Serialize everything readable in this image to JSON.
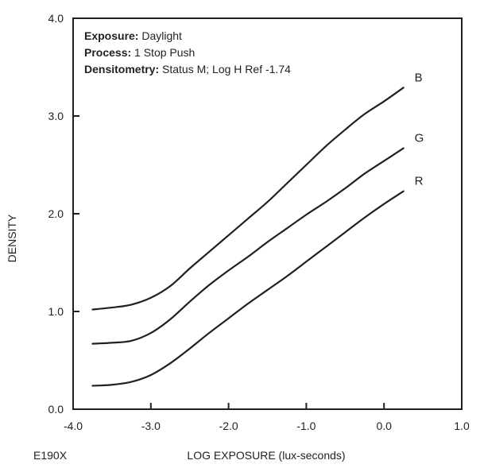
{
  "chart_data": {
    "type": "line",
    "xlabel": "LOG EXPOSURE (lux-seconds)",
    "ylabel": "DENSITY",
    "xlim": [
      -4.0,
      1.0
    ],
    "ylim": [
      0.0,
      4.0
    ],
    "x_ticks": [
      "-4.0",
      "-3.0",
      "-2.0",
      "-1.0",
      "0.0",
      "1.0"
    ],
    "y_ticks": [
      "0.0",
      "1.0",
      "2.0",
      "3.0",
      "4.0"
    ],
    "figure_code": "E190X",
    "info": [
      {
        "label": "Exposure:",
        "value": " Daylight"
      },
      {
        "label": "Process:",
        "value": " 1 Stop Push"
      },
      {
        "label": "Densitometry:",
        "value": " Status M; Log H Ref -1.74"
      }
    ],
    "series": [
      {
        "name": "B",
        "color": "#231f20",
        "points": [
          [
            -3.75,
            1.02
          ],
          [
            -3.5,
            1.04
          ],
          [
            -3.25,
            1.07
          ],
          [
            -3.0,
            1.14
          ],
          [
            -2.75,
            1.26
          ],
          [
            -2.5,
            1.44
          ],
          [
            -2.25,
            1.61
          ],
          [
            -2.0,
            1.78
          ],
          [
            -1.75,
            1.95
          ],
          [
            -1.5,
            2.12
          ],
          [
            -1.25,
            2.31
          ],
          [
            -1.0,
            2.5
          ],
          [
            -0.75,
            2.69
          ],
          [
            -0.5,
            2.86
          ],
          [
            -0.25,
            3.02
          ],
          [
            0.0,
            3.15
          ],
          [
            0.25,
            3.29
          ]
        ]
      },
      {
        "name": "G",
        "color": "#231f20",
        "points": [
          [
            -3.75,
            0.67
          ],
          [
            -3.5,
            0.68
          ],
          [
            -3.25,
            0.7
          ],
          [
            -3.0,
            0.78
          ],
          [
            -2.75,
            0.92
          ],
          [
            -2.5,
            1.1
          ],
          [
            -2.25,
            1.27
          ],
          [
            -2.0,
            1.42
          ],
          [
            -1.75,
            1.56
          ],
          [
            -1.5,
            1.71
          ],
          [
            -1.25,
            1.85
          ],
          [
            -1.0,
            1.99
          ],
          [
            -0.75,
            2.12
          ],
          [
            -0.5,
            2.26
          ],
          [
            -0.25,
            2.41
          ],
          [
            0.0,
            2.54
          ],
          [
            0.25,
            2.67
          ]
        ]
      },
      {
        "name": "R",
        "color": "#231f20",
        "points": [
          [
            -3.75,
            0.24
          ],
          [
            -3.5,
            0.25
          ],
          [
            -3.25,
            0.28
          ],
          [
            -3.0,
            0.35
          ],
          [
            -2.75,
            0.47
          ],
          [
            -2.5,
            0.62
          ],
          [
            -2.25,
            0.78
          ],
          [
            -2.0,
            0.93
          ],
          [
            -1.75,
            1.08
          ],
          [
            -1.5,
            1.22
          ],
          [
            -1.25,
            1.36
          ],
          [
            -1.0,
            1.51
          ],
          [
            -0.75,
            1.66
          ],
          [
            -0.5,
            1.81
          ],
          [
            -0.25,
            1.96
          ],
          [
            0.0,
            2.1
          ],
          [
            0.25,
            2.23
          ]
        ]
      }
    ]
  }
}
